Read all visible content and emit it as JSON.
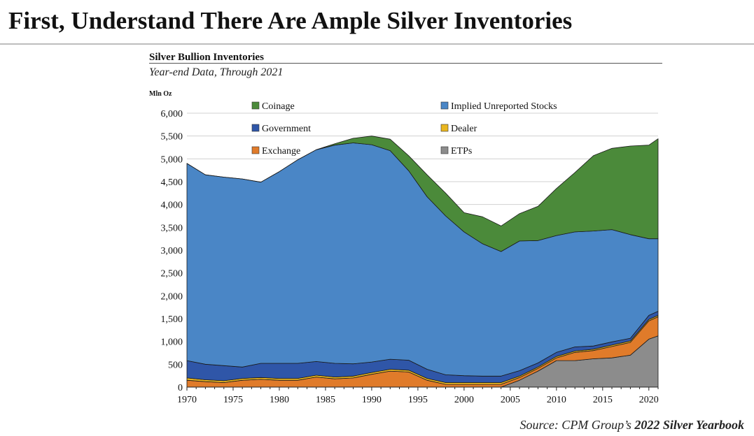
{
  "slide_title": "First, Understand There Are Ample Silver Inventories",
  "source": {
    "prefix": "Source: CPM Group’s",
    "book": "2022 Silver Yearbook"
  },
  "chart_data": {
    "type": "area",
    "stacked": true,
    "title": "Silver Bullion Inventories",
    "subtitle": "Year-end Data, Through 2021",
    "ylabel": "Mln Oz",
    "xlabel": "",
    "xlim": [
      1970,
      2021
    ],
    "ylim": [
      0,
      6000
    ],
    "x_ticks": [
      1970,
      1975,
      1980,
      1985,
      1990,
      1995,
      2000,
      2005,
      2010,
      2015,
      2020
    ],
    "y_ticks": [
      0,
      500,
      1000,
      1500,
      2000,
      2500,
      3000,
      3500,
      4000,
      4500,
      5000,
      5500,
      6000
    ],
    "y_tick_labels": [
      "0",
      "500",
      "1,000",
      "1,500",
      "2,000",
      "2,500",
      "3,000",
      "3,500",
      "4,000",
      "4,500",
      "5,000",
      "5,500",
      "6,000"
    ],
    "grid": "horizontal",
    "legend_placement": "top, inside plot, two columns",
    "legend_order": [
      "Coinage",
      "Implied Unreported Stocks",
      "Government",
      "Dealer",
      "Exchange",
      "ETPs"
    ],
    "x": [
      1970,
      1972,
      1974,
      1976,
      1978,
      1980,
      1982,
      1984,
      1986,
      1988,
      1990,
      1992,
      1994,
      1996,
      1998,
      2000,
      2002,
      2004,
      2006,
      2008,
      2010,
      2012,
      2014,
      2016,
      2018,
      2020,
      2021
    ],
    "series": [
      {
        "name": "ETPs",
        "color": "#8c8c8c",
        "values": [
          0,
          0,
          0,
          0,
          0,
          0,
          0,
          0,
          0,
          0,
          0,
          0,
          0,
          0,
          0,
          0,
          0,
          0,
          150,
          350,
          580,
          580,
          620,
          640,
          700,
          1050,
          1120
        ]
      },
      {
        "name": "Exchange",
        "color": "#e07b2a",
        "values": [
          150,
          120,
          100,
          150,
          170,
          150,
          150,
          220,
          180,
          200,
          280,
          350,
          330,
          150,
          60,
          60,
          60,
          60,
          60,
          60,
          60,
          180,
          180,
          250,
          280,
          400,
          420
        ]
      },
      {
        "name": "Dealer",
        "color": "#e9b620",
        "values": [
          50,
          40,
          40,
          40,
          40,
          40,
          40,
          40,
          40,
          40,
          40,
          40,
          40,
          40,
          40,
          40,
          40,
          40,
          30,
          30,
          30,
          30,
          30,
          30,
          30,
          30,
          30
        ]
      },
      {
        "name": "Government",
        "color": "#2f56a8",
        "values": [
          380,
          340,
          330,
          250,
          310,
          330,
          330,
          300,
          300,
          270,
          230,
          220,
          220,
          200,
          170,
          150,
          140,
          140,
          120,
          90,
          90,
          90,
          70,
          70,
          60,
          90,
          90
        ]
      },
      {
        "name": "Implied Unreported Stocks",
        "color": "#4a86c6",
        "values": [
          4320,
          4150,
          4130,
          4120,
          3970,
          4200,
          4460,
          4640,
          4780,
          4840,
          4760,
          4570,
          4150,
          3780,
          3480,
          3150,
          2900,
          2730,
          2840,
          2680,
          2560,
          2520,
          2520,
          2460,
          2270,
          1680,
          1590
        ]
      },
      {
        "name": "Coinage",
        "color": "#4b8a3a",
        "values": [
          0,
          0,
          0,
          0,
          0,
          0,
          0,
          0,
          30,
          100,
          190,
          250,
          330,
          480,
          500,
          420,
          590,
          560,
          600,
          750,
          1030,
          1300,
          1650,
          1780,
          1940,
          2050,
          2190
        ]
      }
    ]
  }
}
